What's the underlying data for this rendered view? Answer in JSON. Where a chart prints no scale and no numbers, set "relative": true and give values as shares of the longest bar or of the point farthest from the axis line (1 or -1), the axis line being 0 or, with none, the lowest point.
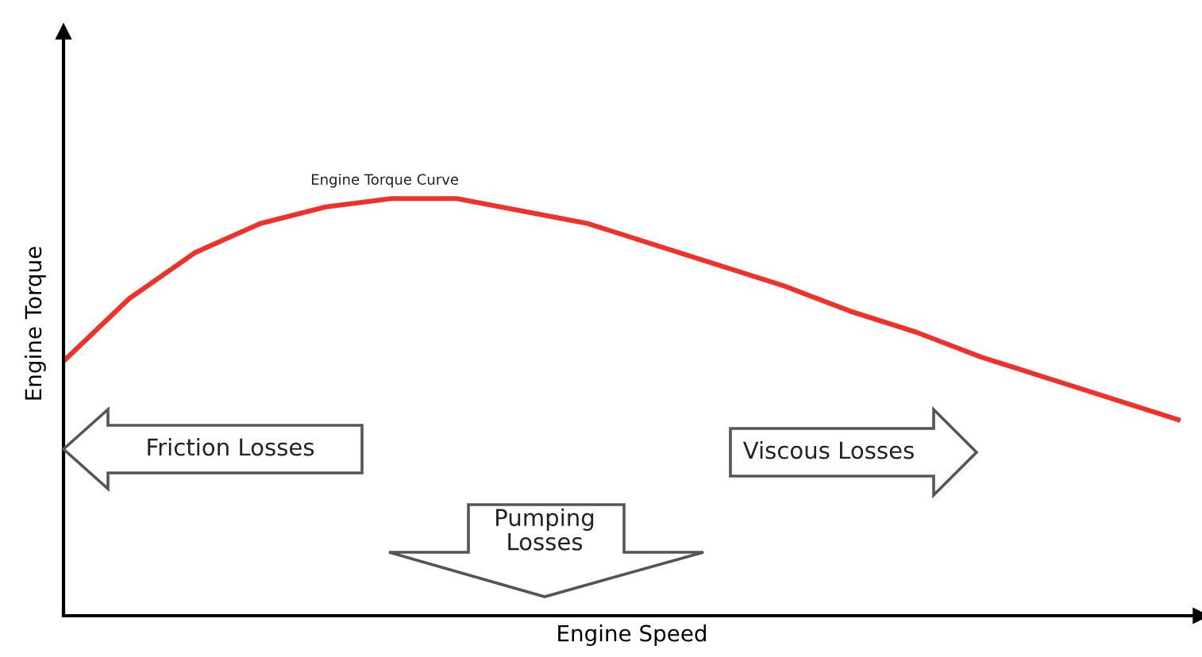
{
  "chart_data": {
    "type": "line",
    "relative": true,
    "xlabel": "Engine Speed",
    "ylabel": "Engine Torque",
    "categories": [
      null,
      null,
      null,
      null,
      null,
      null,
      null,
      null,
      null,
      null,
      null,
      null,
      null,
      null,
      null,
      null,
      null,
      null
    ],
    "series": [
      {
        "name": "Engine Torque Curve",
        "color": "#f0312a",
        "values": [
          0.61,
          0.76,
          0.87,
          0.94,
          0.98,
          1,
          1,
          0.97,
          0.94,
          0.89,
          0.84,
          0.79,
          0.73,
          0.68,
          0.62,
          0.57,
          0.52,
          0.47
        ]
      }
    ],
    "annotations": [
      "Friction Losses",
      "Pumping Losses",
      "Viscous Losses"
    ]
  }
}
